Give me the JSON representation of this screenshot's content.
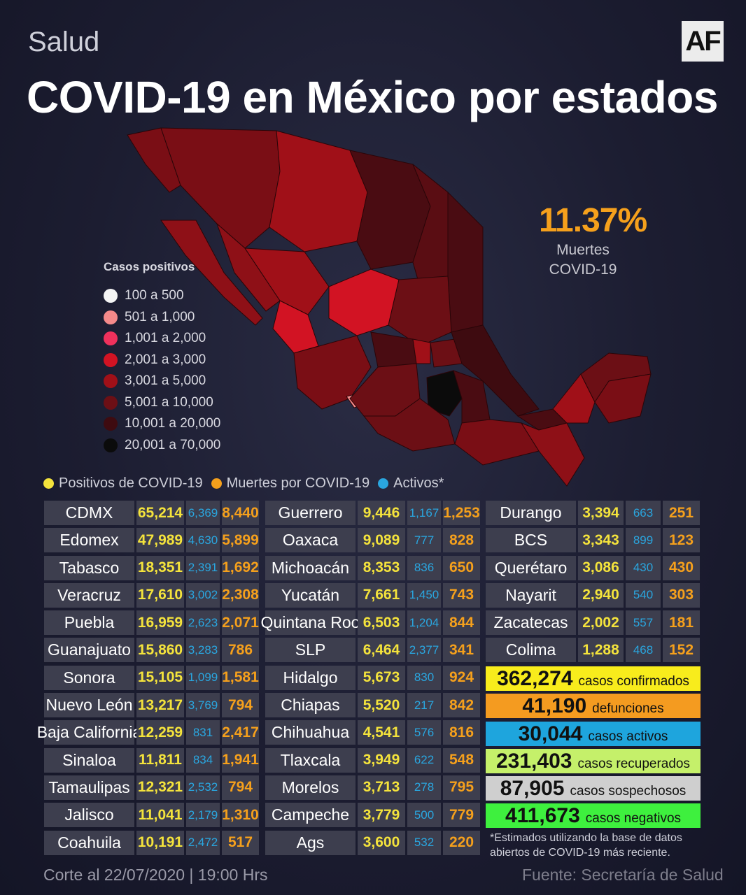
{
  "header": {
    "kicker": "Salud",
    "logo": "AF",
    "title": "COVID-19 en México por estados"
  },
  "highlight": {
    "value": "11.37%",
    "label_line1": "Muertes",
    "label_line2": "COVID-19"
  },
  "legend": {
    "title": "Casos positivos",
    "items": [
      {
        "label": "100  a  500",
        "color": "#f4f4f4"
      },
      {
        "label": "501  a  1,000",
        "color": "#f58a8a"
      },
      {
        "label": "1,001 a 2,000",
        "color": "#f0315c"
      },
      {
        "label": "2,001 a 3,000",
        "color": "#d21323"
      },
      {
        "label": "3,001  a  5,000",
        "color": "#a01018"
      },
      {
        "label": "5,001 a  10,000",
        "color": "#6c0f15"
      },
      {
        "label": "10,001  a  20,000",
        "color": "#3e0b10"
      },
      {
        "label": "20,001  a  70,000",
        "color": "#0b0b0b"
      }
    ]
  },
  "key": [
    {
      "label": "Positivos de COVID-19",
      "color": "#f4e33c"
    },
    {
      "label": "Muertes por COVID-19",
      "color": "#f5a01c"
    },
    {
      "label": "Activos*",
      "color": "#2aa6df"
    }
  ],
  "table": {
    "col1": [
      [
        "CDMX",
        "65,214",
        "6,369",
        "8,440"
      ],
      [
        "Edomex",
        "47,989",
        "4,630",
        "5,899"
      ],
      [
        "Tabasco",
        "18,351",
        "2,391",
        "1,692"
      ],
      [
        "Veracruz",
        "17,610",
        "3,002",
        "2,308"
      ],
      [
        "Puebla",
        "16,959",
        "2,623",
        "2,071"
      ],
      [
        "Guanajuato",
        "15,860",
        "3,283",
        "786"
      ],
      [
        "Sonora",
        "15,105",
        "1,099",
        "1,581"
      ],
      [
        "Nuevo León",
        "13,217",
        "3,769",
        "794"
      ],
      [
        "Baja California",
        "12,259",
        "831",
        "2,417"
      ],
      [
        "Sinaloa",
        "11,811",
        "834",
        "1,941"
      ],
      [
        "Tamaulipas",
        "12,321",
        "2,532",
        "794"
      ],
      [
        "Jalisco",
        "11,041",
        "2,179",
        "1,310"
      ],
      [
        "Coahuila",
        "10,191",
        "2,472",
        "517"
      ]
    ],
    "col2": [
      [
        "Guerrero",
        "9,446",
        "1,167",
        "1,253"
      ],
      [
        "Oaxaca",
        "9,089",
        "777",
        "828"
      ],
      [
        "Michoacán",
        "8,353",
        "836",
        "650"
      ],
      [
        "Yucatán",
        "7,661",
        "1,450",
        "743"
      ],
      [
        "Quintana Roo",
        "6,503",
        "1,204",
        "844"
      ],
      [
        "SLP",
        "6,464",
        "2,377",
        "341"
      ],
      [
        "Hidalgo",
        "5,673",
        "830",
        "924"
      ],
      [
        "Chiapas",
        "5,520",
        "217",
        "842"
      ],
      [
        "Chihuahua",
        "4,541",
        "576",
        "816"
      ],
      [
        "Tlaxcala",
        "3,949",
        "622",
        "548"
      ],
      [
        "Morelos",
        "3,713",
        "278",
        "795"
      ],
      [
        "Campeche",
        "3,779",
        "500",
        "779"
      ],
      [
        "Ags",
        "3,600",
        "532",
        "220"
      ]
    ],
    "col3": [
      [
        "Durango",
        "3,394",
        "663",
        "251"
      ],
      [
        "BCS",
        "3,343",
        "899",
        "123"
      ],
      [
        "Querétaro",
        "3,086",
        "430",
        "430"
      ],
      [
        "Nayarit",
        "2,940",
        "540",
        "303"
      ],
      [
        "Zacatecas",
        "2,002",
        "557",
        "181"
      ],
      [
        "Colima",
        "1,288",
        "468",
        "152"
      ]
    ]
  },
  "summary": [
    {
      "value": "362,274",
      "label": "casos confirmados",
      "color": "#f8ec1c"
    },
    {
      "value": "41,190",
      "label": "defunciones",
      "color": "#f49b20"
    },
    {
      "value": "30,044",
      "label": "casos activos",
      "color": "#1ea5dd"
    },
    {
      "value": "231,403",
      "label": "casos recuperados",
      "color": "#c5f06a"
    },
    {
      "value": "87,905",
      "label": "casos sospechosos",
      "color": "#cfcfcf"
    },
    {
      "value": "411,673",
      "label": "casos negativos",
      "color": "#3ef03e"
    }
  ],
  "note": {
    "line1": "*Estimados utilizando la base de datos",
    "line2": "abiertos de COVID-19 más reciente."
  },
  "footer": {
    "left": "Corte al 22/07/2020 | 19:00 Hrs",
    "right": "Fuente: Secretaría de Salud"
  }
}
